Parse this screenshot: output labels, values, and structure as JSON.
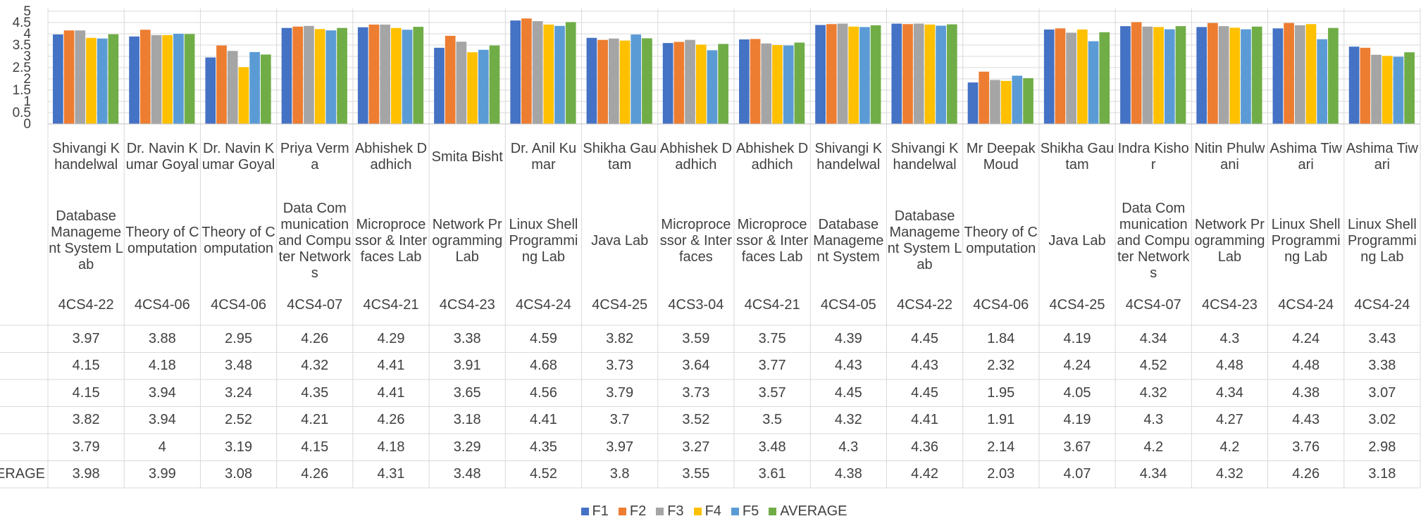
{
  "chart_data": {
    "type": "bar",
    "title": "",
    "ylim": [
      0,
      5
    ],
    "y_ticks": [
      "0",
      "0.5",
      "1",
      "1.5",
      "2",
      "2.5",
      "3",
      "3.5",
      "4",
      "4.5",
      "5"
    ],
    "grid": true,
    "legend_position": "bottom",
    "categories": [
      {
        "teacher": "Shivangi Khandelwal",
        "subject": "Database Management System Lab",
        "code": "4CS4-22"
      },
      {
        "teacher": "Dr. Navin Kumar Goyal",
        "subject": "Theory of Computation",
        "code": "4CS4-06"
      },
      {
        "teacher": "Dr. Navin Kumar Goyal",
        "subject": "Theory of Computation",
        "code": "4CS4-06"
      },
      {
        "teacher": "Priya Verma",
        "subject": "Data Communication and Computer Networks",
        "code": "4CS4-07"
      },
      {
        "teacher": "Abhishek Dadhich",
        "subject": "Microprocessor & Interfaces Lab",
        "code": "4CS4-21"
      },
      {
        "teacher": "Smita Bisht",
        "subject": "Network Programming Lab",
        "code": "4CS4-23"
      },
      {
        "teacher": "Dr. Anil Kumar",
        "subject": "Linux Shell Programming Lab",
        "code": "4CS4-24"
      },
      {
        "teacher": "Shikha Gautam",
        "subject": "Java Lab",
        "code": "4CS4-25"
      },
      {
        "teacher": "Abhishek Dadhich",
        "subject": "Microprocessor & Interfaces",
        "code": "4CS3-04"
      },
      {
        "teacher": "Abhishek Dadhich",
        "subject": "Microprocessor & Interfaces Lab",
        "code": "4CS4-21"
      },
      {
        "teacher": "Shivangi Khandelwal",
        "subject": "Database Management System",
        "code": "4CS4-05"
      },
      {
        "teacher": "Shivangi Khandelwal",
        "subject": "Database Management System Lab",
        "code": "4CS4-22"
      },
      {
        "teacher": "Mr Deepak Moud",
        "subject": "Theory of Computation",
        "code": "4CS4-06"
      },
      {
        "teacher": "Shikha Gautam",
        "subject": "Java Lab",
        "code": "4CS4-25"
      },
      {
        "teacher": "Indra Kishor",
        "subject": "Data Communication and Computer Networks",
        "code": "4CS4-07"
      },
      {
        "teacher": "Nitin Phulwani",
        "subject": "Network Programming Lab",
        "code": "4CS4-23"
      },
      {
        "teacher": "Ashima Tiwari",
        "subject": "Linux Shell Programming Lab",
        "code": "4CS4-24"
      },
      {
        "teacher": "Ashima Tiwari",
        "subject": "Linux Shell Programming Lab",
        "code": "4CS4-24"
      }
    ],
    "series": [
      {
        "name": "F1",
        "row_label": "",
        "color": "#4472C4",
        "values": [
          3.97,
          3.88,
          2.95,
          4.26,
          4.29,
          3.38,
          4.59,
          3.82,
          3.59,
          3.75,
          4.39,
          4.45,
          1.84,
          4.19,
          4.34,
          4.3,
          4.24,
          3.43
        ]
      },
      {
        "name": "F2",
        "row_label": "",
        "color": "#ED7D31",
        "values": [
          4.15,
          4.18,
          3.48,
          4.32,
          4.41,
          3.91,
          4.68,
          3.73,
          3.64,
          3.77,
          4.43,
          4.43,
          2.32,
          4.24,
          4.52,
          4.48,
          4.48,
          3.38
        ]
      },
      {
        "name": "F3",
        "row_label": "",
        "color": "#A5A5A5",
        "values": [
          4.15,
          3.94,
          3.24,
          4.35,
          4.41,
          3.65,
          4.56,
          3.79,
          3.73,
          3.57,
          4.45,
          4.45,
          1.95,
          4.05,
          4.32,
          4.34,
          4.38,
          3.07
        ]
      },
      {
        "name": "F4",
        "row_label": "",
        "color": "#FFC000",
        "values": [
          3.82,
          3.94,
          2.52,
          4.21,
          4.26,
          3.18,
          4.41,
          3.7,
          3.52,
          3.5,
          4.32,
          4.41,
          1.91,
          4.19,
          4.3,
          4.27,
          4.43,
          3.02
        ]
      },
      {
        "name": "F5",
        "row_label": "",
        "color": "#5B9BD5",
        "values": [
          3.79,
          4,
          3.19,
          4.15,
          4.18,
          3.29,
          4.35,
          3.97,
          3.27,
          3.48,
          4.3,
          4.36,
          2.14,
          3.67,
          4.2,
          4.2,
          3.76,
          2.98
        ]
      },
      {
        "name": "AVERAGE",
        "row_label": "ERAGE",
        "color": "#70AD47",
        "values": [
          3.98,
          3.99,
          3.08,
          4.26,
          4.31,
          3.48,
          4.52,
          3.8,
          3.55,
          3.61,
          4.38,
          4.42,
          2.03,
          4.07,
          4.34,
          4.32,
          4.26,
          3.18
        ]
      }
    ]
  }
}
